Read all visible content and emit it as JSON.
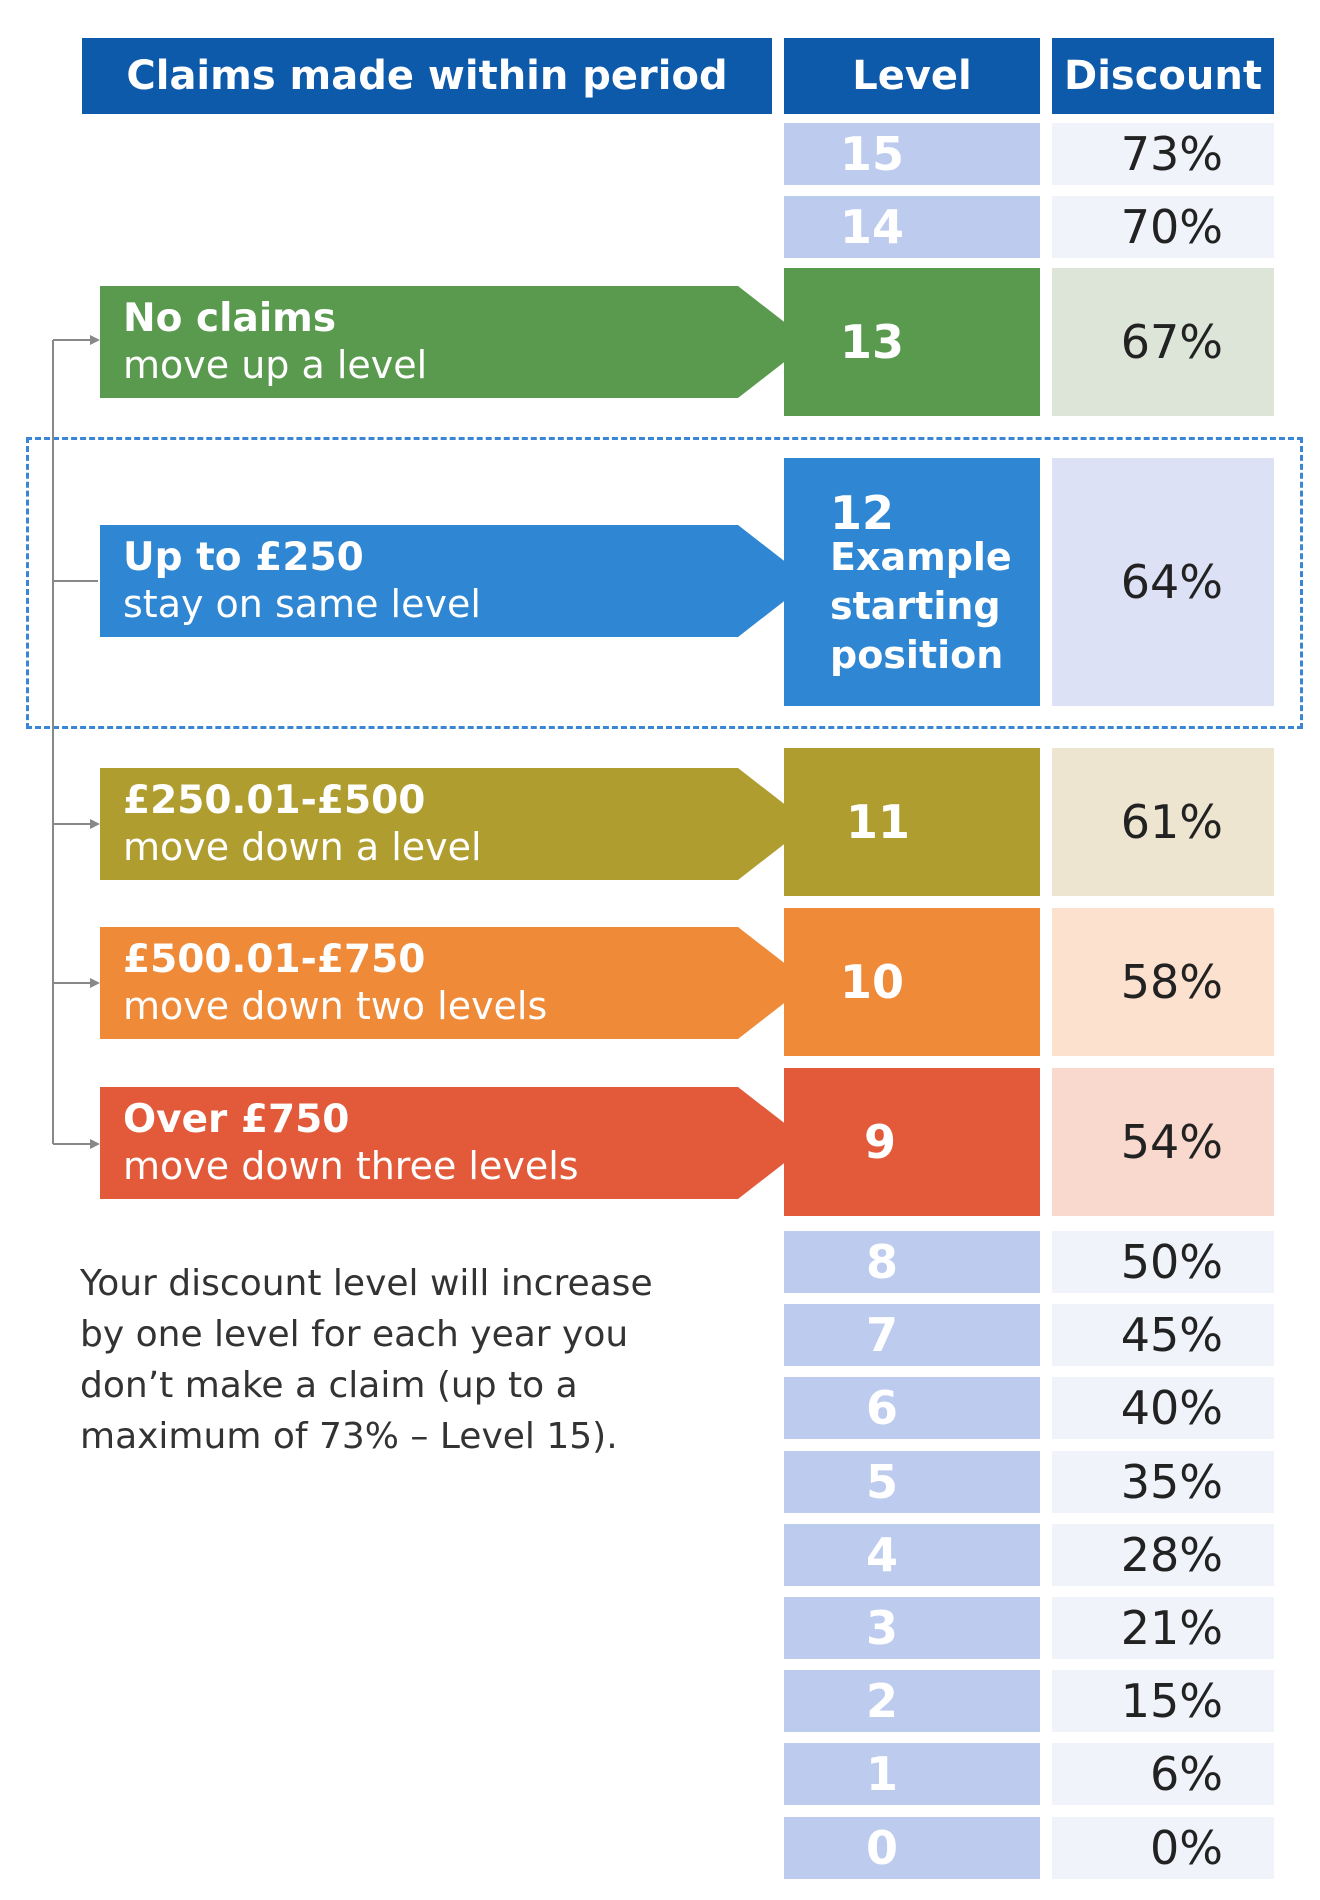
{
  "headers": {
    "claims": "Claims made within period",
    "level": "Level",
    "discount": "Discount"
  },
  "levels": [
    {
      "level": "15",
      "discount": "73%"
    },
    {
      "level": "14",
      "discount": "70%"
    },
    {
      "level": "13",
      "discount": "67%"
    },
    {
      "level": "12",
      "discount": "64%"
    },
    {
      "level": "11",
      "discount": "61%"
    },
    {
      "level": "10",
      "discount": "58%"
    },
    {
      "level": "9",
      "discount": "54%"
    },
    {
      "level": "8",
      "discount": "50%"
    },
    {
      "level": "7",
      "discount": "45%"
    },
    {
      "level": "6",
      "discount": "40%"
    },
    {
      "level": "5",
      "discount": "35%"
    },
    {
      "level": "4",
      "discount": "28%"
    },
    {
      "level": "3",
      "discount": "21%"
    },
    {
      "level": "2",
      "discount": "15%"
    },
    {
      "level": "1",
      "discount": "6%"
    },
    {
      "level": "0",
      "discount": "0%"
    }
  ],
  "example_label": [
    "Example",
    "starting",
    "position"
  ],
  "rules": [
    {
      "title": "No claims",
      "action": "move up a level",
      "color": "#5a9a4f",
      "light": "#dde5d8"
    },
    {
      "title": "Up to £250",
      "action": "stay on same level",
      "color": "#2f86d2",
      "light": "#dde1f5"
    },
    {
      "title": "£250.01-£500",
      "action": "move down a level",
      "color": "#b09d30",
      "light": "#ede5cf"
    },
    {
      "title": "£500.01-£750",
      "action": "move down two levels",
      "color": "#ef8a39",
      "light": "#fde1cf"
    },
    {
      "title": "Over £750",
      "action": "move down three levels",
      "color": "#e35a3a",
      "light": "#f9d9cd"
    }
  ],
  "note": "Your discount level will increase by one level for each year you don’t make a claim (up to a maximum of 73% – Level 15).",
  "colors": {
    "header": "#0d5aab",
    "plain_level": "#bccbee",
    "plain_discount": "#f1f3fb",
    "dashed": "#3a86d4",
    "connector": "#888888"
  }
}
